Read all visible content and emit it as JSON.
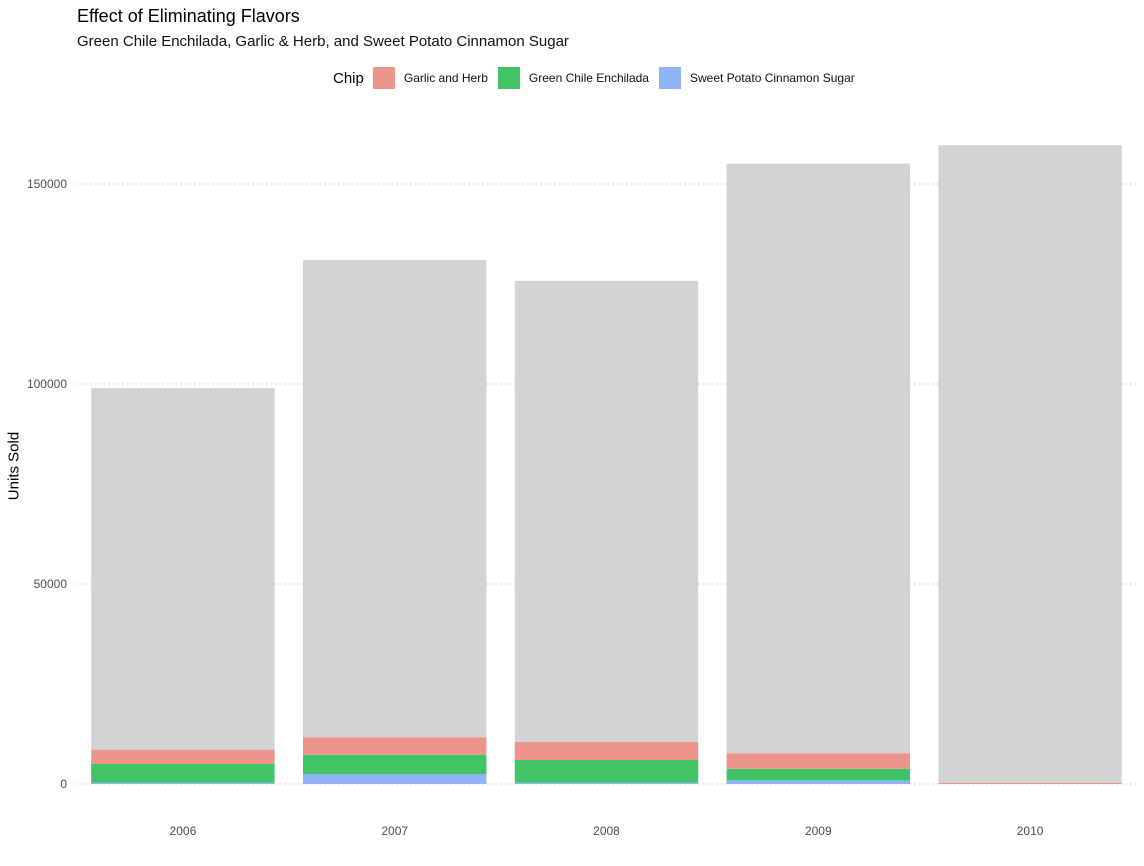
{
  "chart_data": {
    "type": "bar",
    "stacked": true,
    "title": "Effect of Eliminating Flavors",
    "subtitle": "Green Chile Enchilada, Garlic & Herb, and Sweet Potato Cinnamon Sugar",
    "xlabel": "",
    "ylabel": "Units Sold",
    "ylim": [
      0,
      160000
    ],
    "yticks": [
      0,
      50000,
      100000,
      150000
    ],
    "ytick_labels": [
      "0",
      "50000",
      "100000",
      "150000"
    ],
    "categories": [
      "2006",
      "2007",
      "2008",
      "2009",
      "2010"
    ],
    "legend_title": "Chip",
    "legend_position": "top",
    "grid": "horizontal-dotted",
    "series": [
      {
        "name": "Sweet Potato Cinnamon Sugar",
        "color": "#8fb3f5",
        "values": [
          300,
          2500,
          300,
          900,
          0
        ]
      },
      {
        "name": "Green Chile Enchilada",
        "color": "#41c466",
        "values": [
          4700,
          4800,
          5700,
          2900,
          0
        ]
      },
      {
        "name": "Garlic and Herb",
        "color": "#ec958c",
        "values": [
          3600,
          4400,
          4500,
          3900,
          300
        ]
      },
      {
        "color": "#d3d3d3",
        "values": [
          90400,
          119300,
          115300,
          147400,
          159400
        ]
      }
    ],
    "legend_order": [
      "Garlic and Herb",
      "Green Chile Enchilada",
      "Sweet Potato Cinnamon Sugar"
    ],
    "totals": [
      99000,
      131000,
      125800,
      155100,
      159700
    ]
  }
}
